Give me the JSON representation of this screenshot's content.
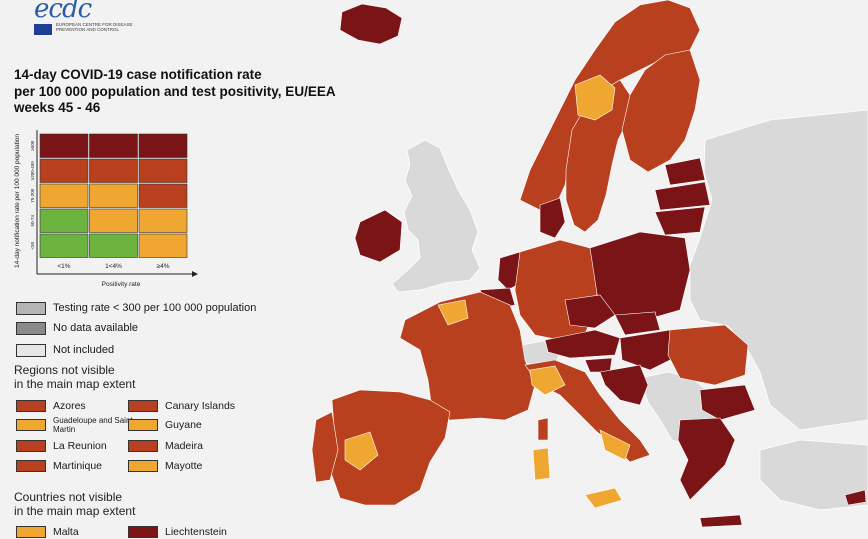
{
  "logo": {
    "brand": "ecdc",
    "subtitle": "EUROPEAN CENTRE FOR DISEASE PREVENTION AND CONTROL"
  },
  "title": {
    "lines": [
      "14-day COVID-19 case notification rate",
      "per 100 000 population and test positivity, EU/EEA",
      "weeks 45 - 46"
    ]
  },
  "colors": {
    "dark_red": "#7b1416",
    "red": "#b8401e",
    "orange": "#f0a732",
    "green": "#6db33f",
    "testing_gray": "#b4b4b4",
    "no_data_gray": "#8a8a8a",
    "not_included": "#e6e6e6",
    "nonincluded_land": "#d9d9d9",
    "sea": "#f2f2f2"
  },
  "legend_matrix": {
    "y_axis_label": "14-day notification rate per 100 000 population",
    "x_axis_label": "Positivity rate",
    "row_labels": [
      "≥500",
      "≥200-499",
      "75-200",
      "50-74",
      "<50"
    ],
    "col_labels": [
      "<1%",
      "1<4%",
      "≥4%"
    ],
    "cells": [
      [
        "dark_red",
        "dark_red",
        "dark_red"
      ],
      [
        "red",
        "red",
        "red"
      ],
      [
        "orange",
        "orange",
        "red"
      ],
      [
        "green",
        "orange",
        "orange"
      ],
      [
        "green",
        "green",
        "orange"
      ]
    ]
  },
  "legend_items": [
    {
      "label": "Testing rate < 300 per 100 000 population",
      "color": "testing_gray"
    },
    {
      "label": "No data available",
      "color": "no_data_gray"
    },
    {
      "label": "Not included",
      "color": "not_included"
    }
  ],
  "regions_title": "Regions not visible\nin the main map extent",
  "regions": [
    {
      "label": "Azores",
      "color": "red"
    },
    {
      "label": "Canary Islands",
      "color": "red"
    },
    {
      "label": "Guadeloupe and Saint Martin",
      "color": "orange"
    },
    {
      "label": "Guyane",
      "color": "orange"
    },
    {
      "label": "La Reunion",
      "color": "red"
    },
    {
      "label": "Madeira",
      "color": "red"
    },
    {
      "label": "Martinique",
      "color": "red"
    },
    {
      "label": "Mayotte",
      "color": "orange"
    }
  ],
  "countries_title": "Countries not visible\nin the main map extent",
  "countries": [
    {
      "label": "Malta",
      "color": "orange"
    },
    {
      "label": "Liechtenstein",
      "color": "dark_red"
    }
  ]
}
